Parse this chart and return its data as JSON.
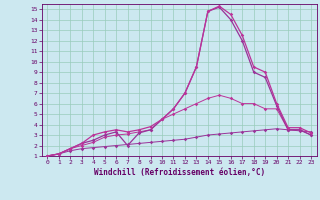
{
  "title": "",
  "xlabel": "Windchill (Refroidissement éolien,°C)",
  "ylabel": "",
  "bg_color": "#cce8f0",
  "grid_color": "#99ccbb",
  "line_color": "#993399",
  "line_color2": "#bb3399",
  "text_color": "#660066",
  "axis_color": "#660066",
  "xlim": [
    -0.5,
    23.5
  ],
  "ylim": [
    1,
    15.5
  ],
  "xticks": [
    0,
    1,
    2,
    3,
    4,
    5,
    6,
    7,
    8,
    9,
    10,
    11,
    12,
    13,
    14,
    15,
    16,
    17,
    18,
    19,
    20,
    21,
    22,
    23
  ],
  "yticks": [
    1,
    2,
    3,
    4,
    5,
    6,
    7,
    8,
    9,
    10,
    11,
    12,
    13,
    14,
    15
  ],
  "lines": [
    [
      1.0,
      1.2,
      1.5,
      1.7,
      1.8,
      1.9,
      2.0,
      2.1,
      2.2,
      2.3,
      2.4,
      2.5,
      2.6,
      2.8,
      3.0,
      3.1,
      3.2,
      3.3,
      3.4,
      3.5,
      3.6,
      3.5,
      3.4,
      3.3
    ],
    [
      1.0,
      1.2,
      1.7,
      2.0,
      2.3,
      2.8,
      3.0,
      3.1,
      3.3,
      3.5,
      4.5,
      5.0,
      5.5,
      6.0,
      6.5,
      6.8,
      6.5,
      6.0,
      6.0,
      5.5,
      5.5,
      3.5,
      3.5,
      3.0
    ],
    [
      1.0,
      1.2,
      1.7,
      2.2,
      2.5,
      3.0,
      3.3,
      2.0,
      3.2,
      3.5,
      4.5,
      5.5,
      7.0,
      9.5,
      14.8,
      15.2,
      14.0,
      12.0,
      9.0,
      8.5,
      5.8,
      3.5,
      3.5,
      3.0
    ],
    [
      1.0,
      1.2,
      1.7,
      2.2,
      3.0,
      3.3,
      3.5,
      3.3,
      3.5,
      3.8,
      4.5,
      5.5,
      7.0,
      9.5,
      14.8,
      15.3,
      14.5,
      12.5,
      9.5,
      9.0,
      6.0,
      3.7,
      3.7,
      3.2
    ]
  ]
}
